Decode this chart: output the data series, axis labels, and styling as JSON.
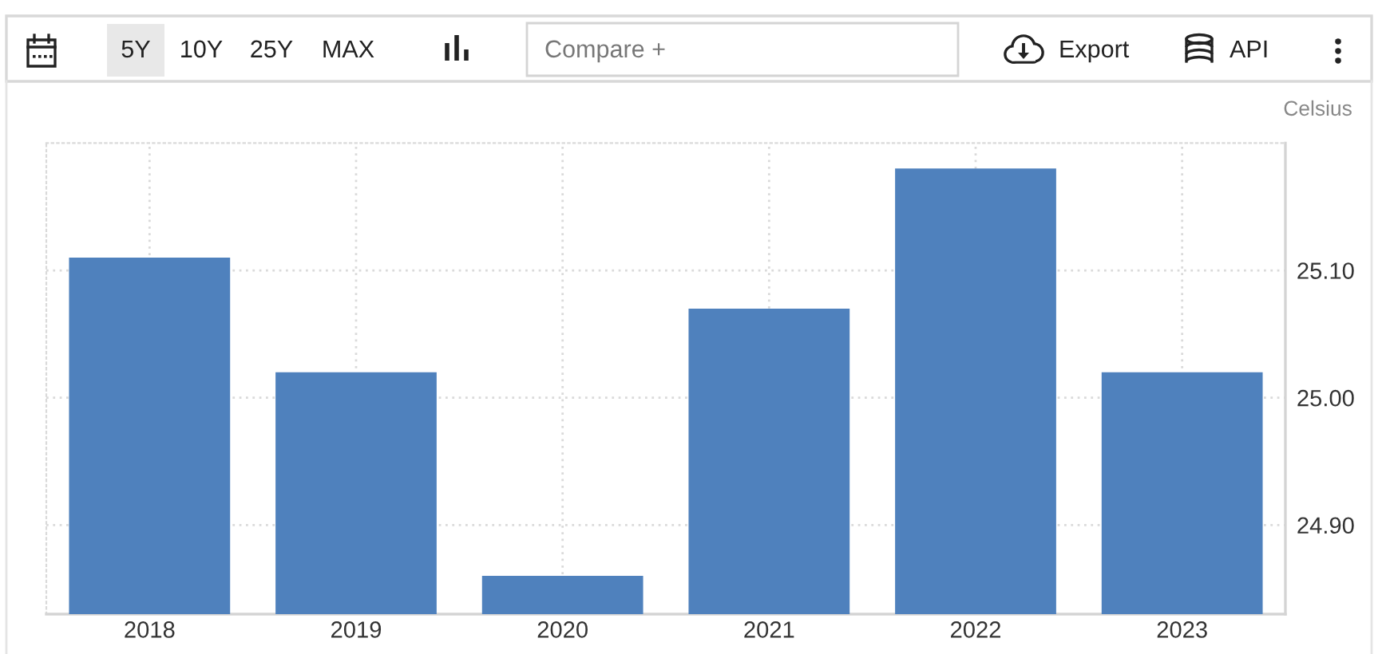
{
  "chart_data": {
    "type": "bar",
    "ylabel": "Celsius",
    "categories": [
      "2018",
      "2019",
      "2020",
      "2021",
      "2022",
      "2023"
    ],
    "values": [
      25.11,
      25.02,
      24.86,
      25.07,
      25.18,
      25.02
    ],
    "color": "#4f81bd",
    "ylim": [
      24.83,
      25.2
    ],
    "yticks": [
      {
        "value": 24.9,
        "label": "24.90"
      },
      {
        "value": 25.0,
        "label": "25.00"
      },
      {
        "value": 25.1,
        "label": "25.10"
      }
    ],
    "grid": true,
    "annotations": [
      "5Y",
      "10Y",
      "25Y",
      "MAX",
      "Compare +",
      "Export",
      "API"
    ]
  }
}
